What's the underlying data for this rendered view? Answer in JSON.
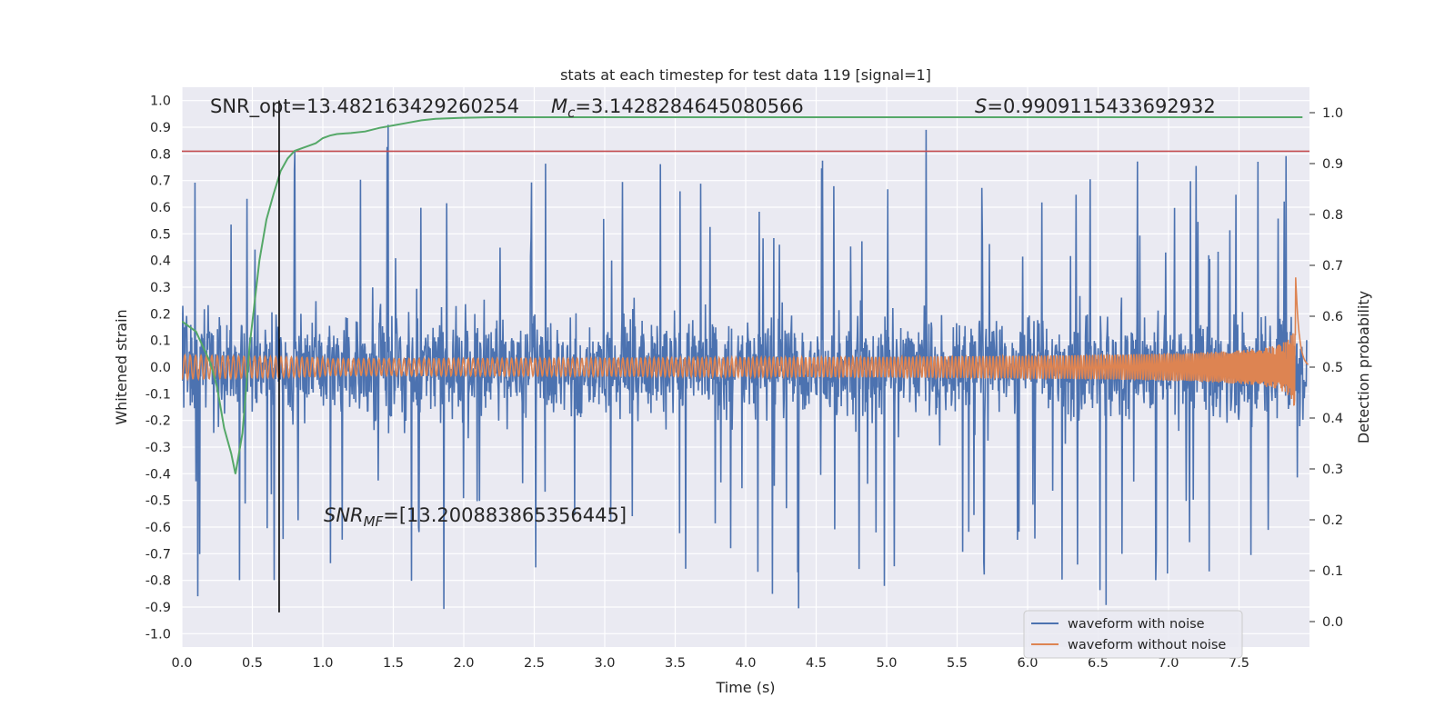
{
  "chart_data": {
    "type": "line",
    "title": "stats at each timestep for test data 119 [signal=1]",
    "xlabel": "Time (s)",
    "ylabel_left": "Whitened strain",
    "ylabel_right": "Detection probability",
    "xlim": [
      0.0,
      8.0
    ],
    "ylim_left": [
      -1.05,
      1.05
    ],
    "ylim_right": [
      -0.05,
      1.05
    ],
    "x_ticks": [
      "0.0",
      "0.5",
      "1.0",
      "1.5",
      "2.0",
      "2.5",
      "3.0",
      "3.5",
      "4.0",
      "4.5",
      "5.0",
      "5.5",
      "6.0",
      "6.5",
      "7.0",
      "7.5"
    ],
    "y_ticks_left": [
      "1.0",
      "0.9",
      "0.8",
      "0.7",
      "0.6",
      "0.5",
      "0.4",
      "0.3",
      "0.2",
      "0.1",
      "0.0",
      "-0.1",
      "-0.2",
      "-0.3",
      "-0.4",
      "-0.5",
      "-0.6",
      "-0.7",
      "-0.8",
      "-0.9",
      "-1.0"
    ],
    "y_ticks_right": [
      "1.0",
      "0.9",
      "0.8",
      "0.7",
      "0.6",
      "0.5",
      "0.4",
      "0.3",
      "0.2",
      "0.1",
      "0.0"
    ],
    "grid": true,
    "legend_position": "bottom-right",
    "series": [
      {
        "name": "waveform with noise",
        "color": "#4c72b0",
        "style": "dense noise, approx ±0.35 band with spikes up to ±1.0"
      },
      {
        "name": "waveform without noise",
        "color": "#dd8452",
        "style": "chirp envelope, ±0.05 growing to peak ~0.63 near t=7.9"
      },
      {
        "color": "#55a868",
        "axis": "right",
        "x": [
          0.0,
          0.1,
          0.2,
          0.25,
          0.3,
          0.35,
          0.38,
          0.43,
          0.48,
          0.55,
          0.6,
          0.65,
          0.7,
          0.75,
          0.8,
          0.85,
          0.9,
          0.95,
          1.0,
          1.05,
          1.1,
          1.2,
          1.3,
          1.4,
          1.5,
          1.6,
          1.7,
          1.8,
          2.0,
          2.2,
          2.5,
          3.0,
          4.0,
          5.0,
          6.0,
          7.0,
          7.95
        ],
        "y": [
          0.59,
          0.57,
          0.51,
          0.46,
          0.38,
          0.33,
          0.29,
          0.37,
          0.54,
          0.71,
          0.79,
          0.84,
          0.885,
          0.91,
          0.925,
          0.93,
          0.935,
          0.94,
          0.95,
          0.955,
          0.958,
          0.96,
          0.963,
          0.97,
          0.975,
          0.98,
          0.985,
          0.988,
          0.99,
          0.991,
          0.991,
          0.991,
          0.991,
          0.991,
          0.991,
          0.991,
          0.991
        ]
      }
    ],
    "hlines": [
      {
        "axis": "left",
        "y": 0.81,
        "color": "#c44e52"
      }
    ],
    "vlines": [
      {
        "x": 0.69,
        "color": "#000000"
      }
    ],
    "annotations": [
      {
        "text": "SNR_opt=13.482163429260254",
        "x": 0.2,
        "y": 1.0
      },
      {
        "text_mc_prefix": "M",
        "text_mc_sub": "c",
        "text_mc_value": "=3.1428284645080566",
        "x": 2.6,
        "y": 1.0
      },
      {
        "text_s_prefix": "S",
        "text_s_value": "=0.9909115433692932",
        "x": 5.6,
        "y": 1.0
      },
      {
        "text_snr_prefix": "SNR",
        "text_snr_sub": "MF",
        "text_snr_value": "=[13.200883865356445]",
        "x": 1.0,
        "y": -0.52
      }
    ]
  }
}
